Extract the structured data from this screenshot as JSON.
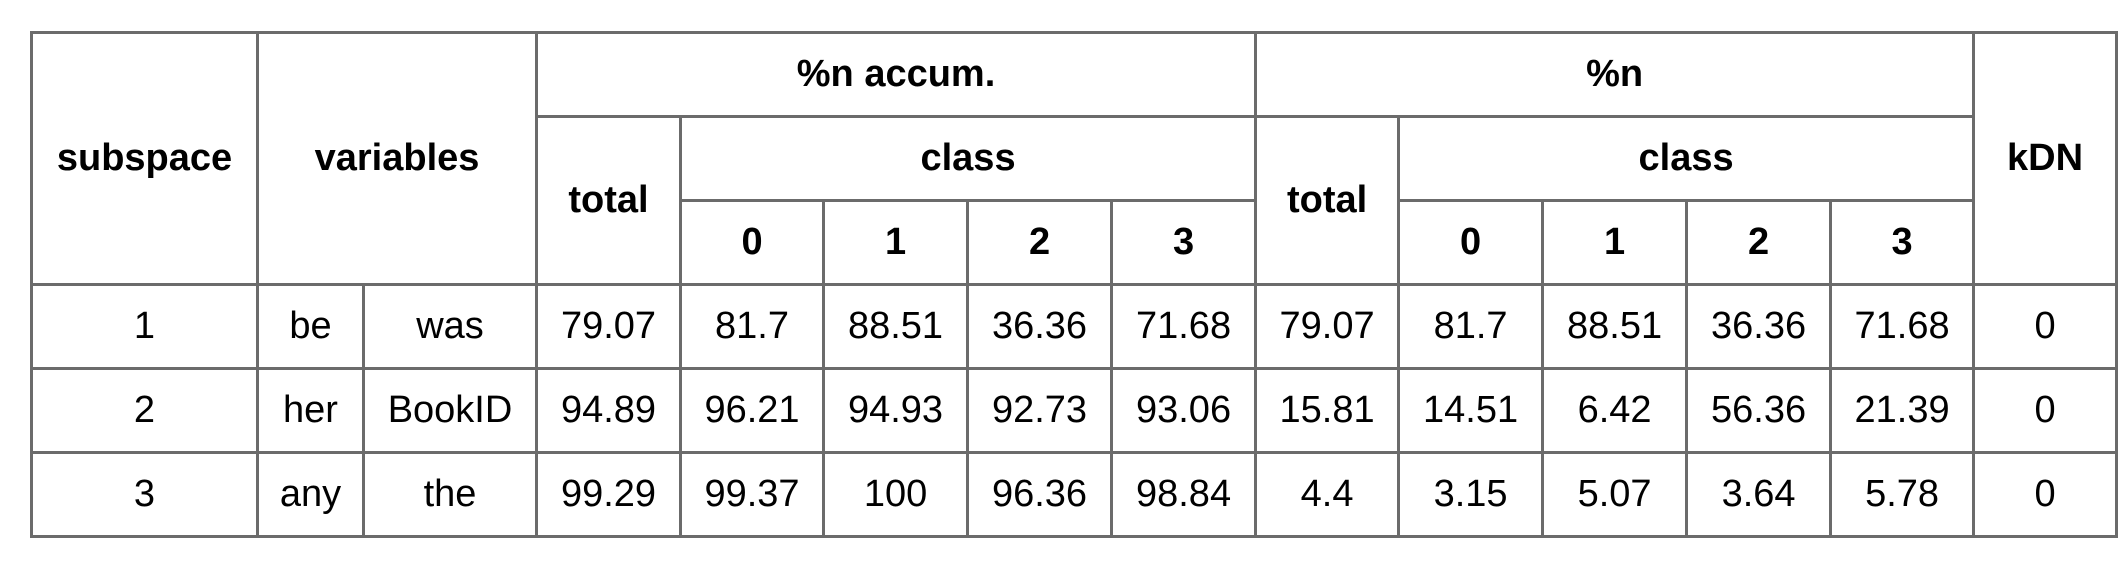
{
  "table": {
    "headers": {
      "subspace": "subspace",
      "variables": "variables",
      "accum_group": "%n accum.",
      "n_group": "%n",
      "kdn": "kDN",
      "total": "total",
      "class": "class",
      "classes": [
        "0",
        "1",
        "2",
        "3"
      ]
    },
    "rows": [
      {
        "subspace": "1",
        "var1": "be",
        "var2": "was",
        "accum_total": "79.07",
        "accum_class": [
          "81.7",
          "88.51",
          "36.36",
          "71.68"
        ],
        "n_total": "79.07",
        "n_class": [
          "81.7",
          "88.51",
          "36.36",
          "71.68"
        ],
        "kdn": "0"
      },
      {
        "subspace": "2",
        "var1": "her",
        "var2": "BookID",
        "accum_total": "94.89",
        "accum_class": [
          "96.21",
          "94.93",
          "92.73",
          "93.06"
        ],
        "n_total": "15.81",
        "n_class": [
          "14.51",
          "6.42",
          "56.36",
          "21.39"
        ],
        "kdn": "0"
      },
      {
        "subspace": "3",
        "var1": "any",
        "var2": "the",
        "accum_total": "99.29",
        "accum_class": [
          "99.37",
          "100",
          "96.36",
          "98.84"
        ],
        "n_total": "4.4",
        "n_class": [
          "3.15",
          "5.07",
          "3.64",
          "5.78"
        ],
        "kdn": "0"
      }
    ]
  }
}
